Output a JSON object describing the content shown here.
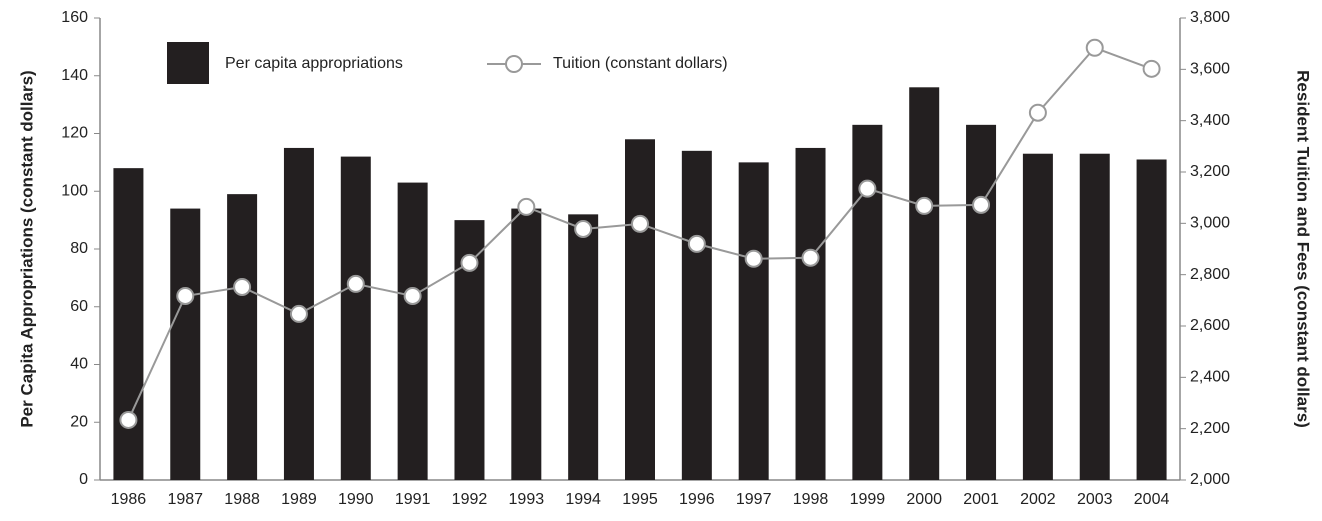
{
  "chart_data": {
    "type": "bar",
    "y_label": "Per Capita Appropriations (constant dollars)",
    "y2_label": "Resident Tuition and Fees (constant dollars)",
    "categories": [
      "1986",
      "1987",
      "1988",
      "1989",
      "1990",
      "1991",
      "1992",
      "1993",
      "1994",
      "1995",
      "1996",
      "1997",
      "1998",
      "1999",
      "2000",
      "2001",
      "2002",
      "2003",
      "2004"
    ],
    "series": [
      {
        "name": "Per capita appropriations",
        "type": "bar",
        "color": "#231f20",
        "values": [
          108,
          94,
          99,
          115,
          112,
          103,
          90,
          94,
          92,
          118,
          114,
          110,
          115,
          123,
          136,
          123,
          113,
          113,
          111
        ]
      },
      {
        "name": "Tuition (constant dollars)",
        "type": "line",
        "axis": "y2",
        "color": "#999999",
        "values": [
          2234,
          2717,
          2752,
          2647,
          2764,
          2717,
          2846,
          3064,
          2978,
          2998,
          2920,
          2862,
          2866,
          3135,
          3068,
          3072,
          3431,
          3684,
          3602
        ]
      }
    ],
    "ylim": [
      0,
      160
    ],
    "yticks": [
      0,
      20,
      40,
      60,
      80,
      100,
      120,
      140,
      160
    ],
    "y2lim": [
      2000,
      3800
    ],
    "y2ticks": [
      {
        "value": 2000,
        "label": "2,000"
      },
      {
        "value": 2200,
        "label": "2,200"
      },
      {
        "value": 2400,
        "label": "2,400"
      },
      {
        "value": 2600,
        "label": "2,600"
      },
      {
        "value": 2800,
        "label": "2,800"
      },
      {
        "value": 3000,
        "label": "3,000"
      },
      {
        "value": 3200,
        "label": "3,200"
      },
      {
        "value": 3400,
        "label": "3,400"
      },
      {
        "value": 3600,
        "label": "3,600"
      },
      {
        "value": 3800,
        "label": "3,800"
      }
    ],
    "legend": "upper left"
  }
}
